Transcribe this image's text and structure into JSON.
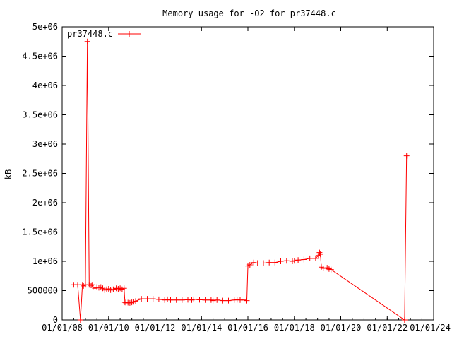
{
  "chart_data": {
    "type": "line",
    "title": "Memory usage for -O2 for pr37448.c",
    "xlabel": "",
    "ylabel": "kB",
    "xlim": [
      "2008-01-01",
      "2024-01-01"
    ],
    "ylim": [
      0,
      5000000
    ],
    "x_ticks": [
      "01/01/08",
      "01/01/10",
      "01/01/12",
      "01/01/14",
      "01/01/16",
      "01/01/18",
      "01/01/20",
      "01/01/22",
      "01/01/24"
    ],
    "x_tick_dates": [
      "2008-01-01",
      "2010-01-01",
      "2012-01-01",
      "2014-01-01",
      "2016-01-01",
      "2018-01-01",
      "2020-01-01",
      "2022-01-01",
      "2024-01-01"
    ],
    "y_ticks": [
      "0",
      "500000",
      "1e+06",
      "1.5e+06",
      "2e+06",
      "2.5e+06",
      "3e+06",
      "3.5e+06",
      "4e+06",
      "4.5e+06",
      "5e+06"
    ],
    "y_tick_values": [
      0,
      500000,
      1000000,
      1500000,
      2000000,
      2500000,
      3000000,
      3500000,
      4000000,
      4500000,
      5000000
    ],
    "grid": false,
    "legend_position": "top-left",
    "series_color": "#ff0000",
    "series": [
      {
        "name": "pr37448.c",
        "x": [
          "2008-07-01",
          "2008-09-01",
          "2008-10-15",
          "2008-11-15",
          "2008-12-01",
          "2009-01-01",
          "2009-02-01",
          "2009-03-01",
          "2009-04-01",
          "2009-04-15",
          "2009-05-01",
          "2009-06-01",
          "2009-07-01",
          "2009-08-01",
          "2009-09-01",
          "2009-10-01",
          "2009-11-01",
          "2009-12-01",
          "2010-01-01",
          "2010-02-01",
          "2010-03-15",
          "2010-05-01",
          "2010-06-01",
          "2010-07-01",
          "2010-08-01",
          "2010-09-01",
          "2010-09-15",
          "2010-10-01",
          "2010-11-01",
          "2010-12-01",
          "2011-01-01",
          "2011-02-01",
          "2011-03-01",
          "2011-06-01",
          "2011-09-01",
          "2011-12-01",
          "2012-03-01",
          "2012-06-01",
          "2012-07-15",
          "2012-09-01",
          "2012-12-01",
          "2013-03-01",
          "2013-06-01",
          "2013-08-01",
          "2013-09-01",
          "2013-12-01",
          "2014-03-01",
          "2014-06-01",
          "2014-07-01",
          "2014-09-01",
          "2014-12-01",
          "2015-03-01",
          "2015-06-01",
          "2015-07-15",
          "2015-09-01",
          "2015-11-01",
          "2015-12-15",
          "2016-01-01",
          "2016-02-01",
          "2016-04-01",
          "2016-06-01",
          "2016-09-01",
          "2016-12-01",
          "2017-03-01",
          "2017-06-01",
          "2017-09-01",
          "2017-12-01",
          "2018-01-01",
          "2018-03-01",
          "2018-06-01",
          "2018-09-01",
          "2018-12-01",
          "2019-01-15",
          "2019-02-01",
          "2019-02-15",
          "2019-03-01",
          "2019-04-01",
          "2019-06-01",
          "2019-06-15",
          "2019-07-01",
          "2019-08-01",
          "2022-10-01",
          "2022-11-01"
        ],
        "values": [
          600000,
          600000,
          0,
          600000,
          580000,
          600000,
          4750000,
          600000,
          590000,
          600000,
          560000,
          540000,
          560000,
          550000,
          560000,
          540000,
          510000,
          520000,
          530000,
          510000,
          520000,
          540000,
          530000,
          540000,
          520000,
          540000,
          300000,
          290000,
          295000,
          290000,
          300000,
          310000,
          320000,
          360000,
          360000,
          360000,
          350000,
          340000,
          350000,
          340000,
          340000,
          340000,
          345000,
          340000,
          350000,
          345000,
          340000,
          340000,
          330000,
          340000,
          330000,
          330000,
          340000,
          345000,
          340000,
          340000,
          330000,
          920000,
          940000,
          980000,
          970000,
          970000,
          980000,
          980000,
          1000000,
          1010000,
          1000000,
          1010000,
          1020000,
          1030000,
          1050000,
          1050000,
          1100000,
          1150000,
          1120000,
          900000,
          880000,
          890000,
          880000,
          870000,
          860000,
          0,
          2800000
        ]
      }
    ]
  }
}
